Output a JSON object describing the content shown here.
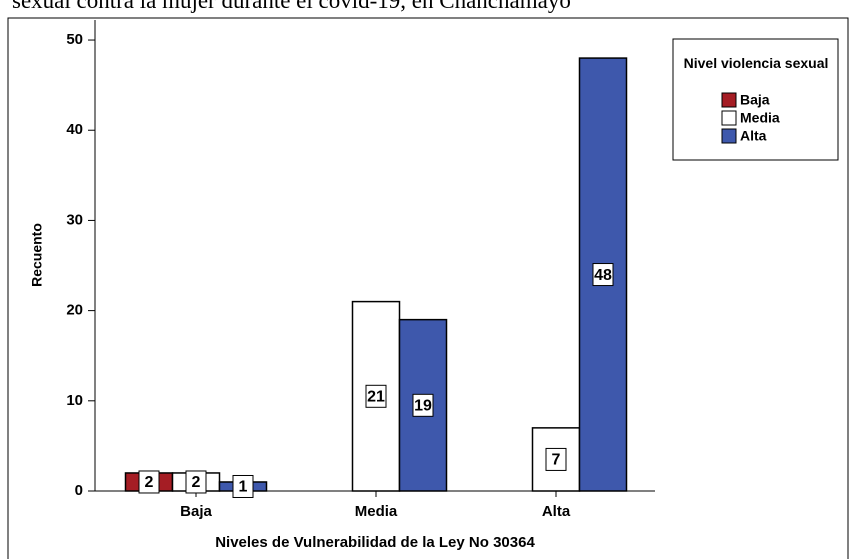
{
  "chart_data": {
    "type": "bar",
    "title": "sexual contra la mujer durante el covid-19, en Chanchamayo",
    "x_label": "Niveles de Vulnerabilidad de la Ley No 30364",
    "y_label": "Recuento",
    "legend_title": "Nivel violencia sexual",
    "legend_position": "upper right",
    "categories": [
      "Baja",
      "Media",
      "Alta"
    ],
    "series": [
      {
        "name": "Baja",
        "color": "#a51d24",
        "values": [
          2,
          null,
          null
        ]
      },
      {
        "name": "Media",
        "color": "#ffffff",
        "values": [
          2,
          21,
          7
        ]
      },
      {
        "name": "Alta",
        "color": "#3e58ac",
        "values": [
          1,
          19,
          48
        ]
      }
    ],
    "ylim": [
      0,
      52
    ],
    "yticks": [
      0,
      10,
      20,
      30,
      40,
      50
    ],
    "grid": false
  }
}
